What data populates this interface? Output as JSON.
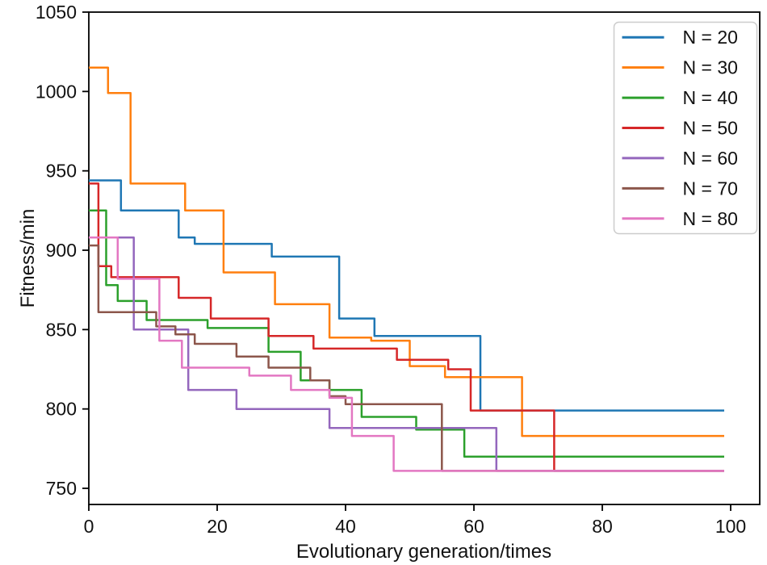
{
  "chart_data": {
    "type": "line",
    "step": "post",
    "title": "",
    "xlabel": "Evolutionary generation/times",
    "ylabel": "Fitness/min",
    "xlim": [
      0,
      104.5
    ],
    "ylim": [
      750,
      1050
    ],
    "xticks": [
      0,
      20,
      40,
      60,
      80,
      100
    ],
    "yticks": [
      750,
      800,
      850,
      900,
      950,
      1000,
      1050
    ],
    "grid": false,
    "legend_position": "upper right",
    "line_width": 2.5,
    "series": [
      {
        "name": "N = 20",
        "color": "#1f77b4",
        "points": [
          [
            0,
            944
          ],
          [
            5,
            925
          ],
          [
            14,
            908
          ],
          [
            16.5,
            904
          ],
          [
            28.5,
            896
          ],
          [
            39,
            857
          ],
          [
            44.5,
            846
          ],
          [
            61,
            799
          ],
          [
            99,
            799
          ]
        ]
      },
      {
        "name": "N = 30",
        "color": "#ff7f0e",
        "points": [
          [
            0,
            1015
          ],
          [
            3,
            999
          ],
          [
            6.5,
            942
          ],
          [
            15,
            925
          ],
          [
            21,
            886
          ],
          [
            29,
            866
          ],
          [
            37.5,
            845
          ],
          [
            44,
            843
          ],
          [
            50,
            827
          ],
          [
            55.5,
            820
          ],
          [
            67.5,
            783
          ],
          [
            99,
            783
          ]
        ]
      },
      {
        "name": "N = 40",
        "color": "#2ca02c",
        "points": [
          [
            0,
            925
          ],
          [
            2.7,
            878
          ],
          [
            4.5,
            868
          ],
          [
            9,
            856
          ],
          [
            18.5,
            851
          ],
          [
            28,
            836
          ],
          [
            33,
            818
          ],
          [
            37.5,
            812
          ],
          [
            42.5,
            795
          ],
          [
            51,
            787
          ],
          [
            58.5,
            770
          ],
          [
            99,
            770
          ]
        ]
      },
      {
        "name": "N = 50",
        "color": "#d62728",
        "points": [
          [
            0,
            942
          ],
          [
            1.5,
            890
          ],
          [
            3.5,
            883
          ],
          [
            14,
            870
          ],
          [
            19,
            857
          ],
          [
            28,
            846
          ],
          [
            35,
            838
          ],
          [
            48,
            831
          ],
          [
            56,
            825
          ],
          [
            59.5,
            799
          ],
          [
            72.5,
            761
          ],
          [
            99,
            761
          ]
        ]
      },
      {
        "name": "N = 60",
        "color": "#9467bd",
        "points": [
          [
            0,
            908
          ],
          [
            7,
            850
          ],
          [
            15.5,
            812
          ],
          [
            23,
            800
          ],
          [
            37.5,
            788
          ],
          [
            63.5,
            761
          ],
          [
            99,
            761
          ]
        ]
      },
      {
        "name": "N = 70",
        "color": "#8c564b",
        "points": [
          [
            0,
            903
          ],
          [
            1.5,
            861
          ],
          [
            10.5,
            852
          ],
          [
            13.5,
            847
          ],
          [
            16.5,
            841
          ],
          [
            23,
            833
          ],
          [
            28,
            826
          ],
          [
            34.5,
            818
          ],
          [
            37.5,
            808
          ],
          [
            40,
            803
          ],
          [
            55,
            761
          ],
          [
            99,
            761
          ]
        ]
      },
      {
        "name": "N = 80",
        "color": "#e377c2",
        "points": [
          [
            0,
            908
          ],
          [
            4.5,
            882
          ],
          [
            11,
            843
          ],
          [
            14.5,
            826
          ],
          [
            25,
            821
          ],
          [
            31.5,
            812
          ],
          [
            37.5,
            807
          ],
          [
            41,
            783
          ],
          [
            47.5,
            761
          ],
          [
            99,
            761
          ]
        ]
      }
    ]
  }
}
